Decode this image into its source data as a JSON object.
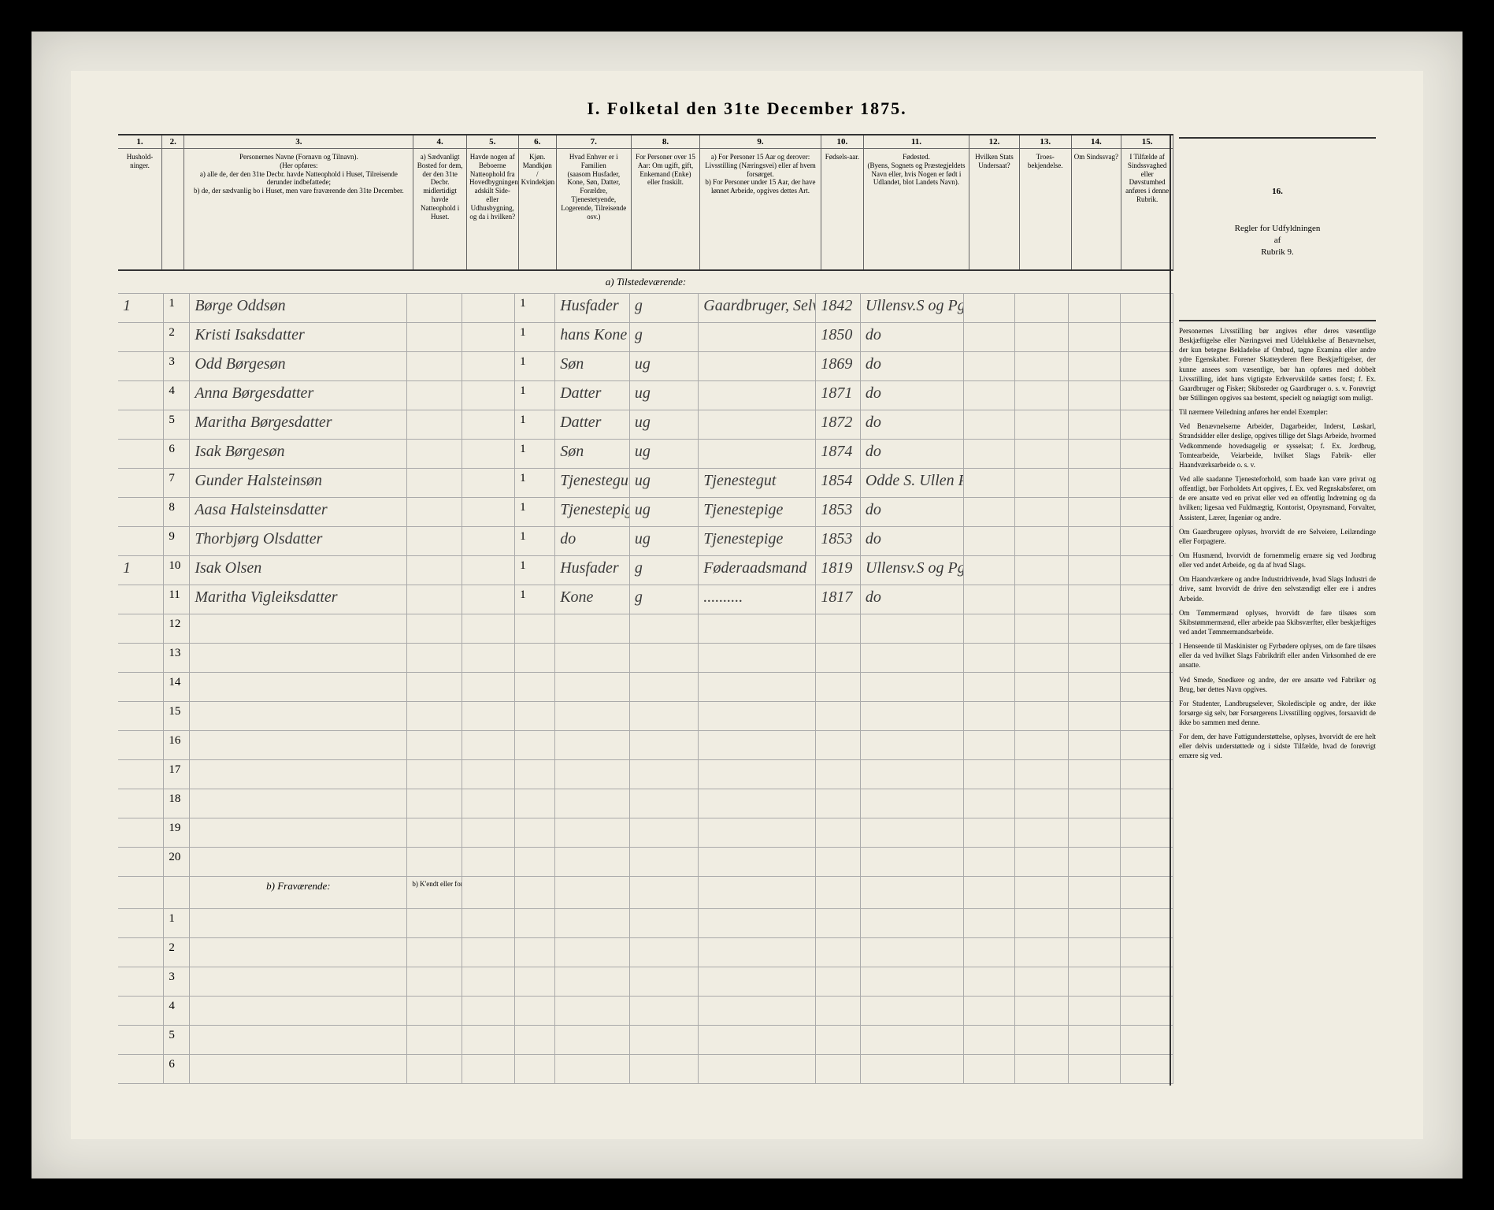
{
  "title": "I.  Folketal   den 31te December 1875.",
  "columns": [
    {
      "num": "1.",
      "label": "Hushold-\nninger.",
      "width": "c1"
    },
    {
      "num": "2.",
      "label": "",
      "width": "c2"
    },
    {
      "num": "3.",
      "label": "Personernes Navne (Fornavn og Tilnavn).\n(Her opføres:\na) alle de, der den 31te Decbr. havde Natteophold i Huset, Tilreisende derunder indbefattede;\nb) de, der sædvanlig bo i Huset, men vare fraværende den 31te December.",
      "width": "c3"
    },
    {
      "num": "4.",
      "label": "a) Sædvanligt Bosted for dem, der den 31te Decbr. midlertidigt havde Natteophold i Huset.",
      "width": "c4"
    },
    {
      "num": "5.",
      "label": "Havde nogen af Beboerne Natteophold fra Hovedbygningen adskilt Side- eller Udhusbygning, og da i hvilken?",
      "width": "c5"
    },
    {
      "num": "6.",
      "label": "Kjøn.\nMandkjøn / Kvindekjøn",
      "width": "c6"
    },
    {
      "num": "7.",
      "label": "Hvad Enhver er i Familien\n(saasom Husfader, Kone, Søn, Datter, Forældre, Tjenestetyende, Logerende, Tilreisende osv.)",
      "width": "c7"
    },
    {
      "num": "8.",
      "label": "For Personer over 15 Aar: Om ugift, gift, Enkemand (Enke) eller fraskilt.",
      "width": "c8"
    },
    {
      "num": "9.",
      "label": "a) For Personer 15 Aar og derover: Livsstilling (Næringsvei) eller af hvem forsørget.\nb) For Personer under 15 Aar, der have lønnet Arbeide, opgives dettes Art.",
      "width": "c9"
    },
    {
      "num": "10.",
      "label": "Fødsels-aar.",
      "width": "c10"
    },
    {
      "num": "11.",
      "label": "Fødested.\n(Byens, Sognets og Præstegjeldets Navn eller, hvis Nogen er født i Udlandet, blot Landets Navn).",
      "width": "c11"
    },
    {
      "num": "12.",
      "label": "Hvilken Stats Undersaat?",
      "width": "c12"
    },
    {
      "num": "13.",
      "label": "Troes-bekjendelse.",
      "width": "c13"
    },
    {
      "num": "14.",
      "label": "Om Sindssvag?",
      "width": "c14"
    },
    {
      "num": "15.",
      "label": "I Tilfælde af Sindssvaghed eller Døvstumhed anføres i denne Rubrik.",
      "width": "c15"
    }
  ],
  "section_a": "a) Tilstedeværende:",
  "section_b": "b) Fraværende:",
  "section_b_note": "b) K'endt eller formodet Opholdssted.",
  "rows_a": [
    {
      "n": "1",
      "hh": "1",
      "name": "Børge Oddsøn",
      "c6": "1",
      "rel": "Husfader",
      "ms": "g",
      "occ": "Gaardbruger, Selveier",
      "yr": "1842",
      "bp": "Ullensv.S og Pgj"
    },
    {
      "n": "2",
      "hh": "",
      "name": "Kristi Isaksdatter",
      "c6": "1",
      "rel": "hans Kone",
      "ms": "g",
      "occ": "",
      "yr": "1850",
      "bp": "do"
    },
    {
      "n": "3",
      "hh": "",
      "name": "Odd Børgesøn",
      "c6": "1",
      "rel": "Søn",
      "ms": "ug",
      "occ": "",
      "yr": "1869",
      "bp": "do"
    },
    {
      "n": "4",
      "hh": "",
      "name": "Anna Børgesdatter",
      "c6": "1",
      "rel": "Datter",
      "ms": "ug",
      "occ": "",
      "yr": "1871",
      "bp": "do"
    },
    {
      "n": "5",
      "hh": "",
      "name": "Maritha Børgesdatter",
      "c6": "1",
      "rel": "Datter",
      "ms": "ug",
      "occ": "",
      "yr": "1872",
      "bp": "do"
    },
    {
      "n": "6",
      "hh": "",
      "name": "Isak Børgesøn",
      "c6": "1",
      "rel": "Søn",
      "ms": "ug",
      "occ": "",
      "yr": "1874",
      "bp": "do"
    },
    {
      "n": "7",
      "hh": "",
      "name": "Gunder Halsteinsøn",
      "c6": "1",
      "rel": "Tjenestegut",
      "ms": "ug",
      "occ": "Tjenestegut",
      "yr": "1854",
      "bp": "Odde S. Ullen Pgj"
    },
    {
      "n": "8",
      "hh": "",
      "name": "Aasa Halsteinsdatter",
      "c6": "1",
      "rel": "Tjenestepige",
      "ms": "ug",
      "occ": "Tjenestepige",
      "yr": "1853",
      "bp": "do"
    },
    {
      "n": "9",
      "hh": "",
      "name": "Thorbjørg Olsdatter",
      "c6": "1",
      "rel": "do",
      "ms": "ug",
      "occ": "Tjenestepige",
      "yr": "1853",
      "bp": "do"
    },
    {
      "n": "10",
      "hh": "1",
      "name": "Isak Olsen",
      "c6": "1",
      "rel": "Husfader",
      "ms": "g",
      "occ": "Føderaadsmand",
      "yr": "1819",
      "bp": "Ullensv.S og Pgj"
    },
    {
      "n": "11",
      "hh": "",
      "name": "Maritha Vigleiksdatter",
      "c6": "1",
      "rel": "Kone",
      "ms": "g",
      "occ": "..........",
      "yr": "1817",
      "bp": "do"
    }
  ],
  "empty_rows_a": [
    12,
    13,
    14,
    15,
    16,
    17,
    18,
    19,
    20
  ],
  "empty_rows_b": [
    1,
    2,
    3,
    4,
    5,
    6
  ],
  "right_header_num": "16.",
  "right_header": "Regler for Udfyldningen\naf\nRubrik 9.",
  "right_body": [
    "Personernes Livsstilling bør angives efter deres væsentlige Beskjæftigelse eller Næringsvei med Udelukkelse af Benævnelser, der kun betegne Bekladelse af Ombud, tagne Examina eller andre ydre Egenskaber. Forener Skatteyderen flere Beskjæftigelser, der kunne ansees som væsentlige, bør han opføres med dobbelt Livsstilling, idet hans vigtigste Erhvervskilde sættes forst; f. Ex. Gaardbruger og Fisker; Skibsreder og Gaardbruger o. s. v. Forøvrigt bør Stillingen opgives saa bestemt, specielt og nøiagtigt som muligt.",
    "Til nærmere Veiledning anføres her endel Exempler:",
    "Ved Benævnelserne Arbeider, Dagarbeider, Inderst, Løskarl, Strandsidder eller deslige, opgives tillige det Slags Arbeide, hvormed Vedkommende hovedsagelig er sysselsat; f. Ex. Jordbrug, Tomtearbeide, Veiarbeide, hvilket Slags Fabrik- eller Haandværksarbeide o. s. v.",
    "Ved alle saadanne Tjenesteforhold, som baade kan være privat og offentligt, bør Forholdets Art opgives, f. Ex. ved Regnskabsfører, om de ere ansatte ved en privat eller ved en offentlig Indretning og da hvilken; ligesaa ved Fuldmægtig, Kontorist, Opsynsmand, Forvalter, Assistent, Lærer, Ingeniør og andre.",
    "Om Gaardbrugere oplyses, hvorvidt de ere Selveiere, Leilændinge eller Forpagtere.",
    "Om Husmænd, hvorvidt de fornemmelig ernære sig ved Jordbrug eller ved andet Arbeide, og da af hvad Slags.",
    "Om Haandværkere og andre Industridrivende, hvad Slags Industri de drive, samt hvorvidt de drive den selvstændigt eller ere i andres Arbeide.",
    "Om Tømmermænd oplyses, hvorvidt de fare tilsøes som Skibstømmermænd, eller arbeide paa Skibsværfter, eller beskjæftiges ved andet Tømmermandsarbeide.",
    "I Henseende til Maskinister og Fyrbødere oplyses, om de fare tilsøes eller da ved hvilket Slags Fabrikdrift eller anden Virksomhed de ere ansatte.",
    "Ved Smede, Snedkere og andre, der ere ansatte ved Fabriker og Brug, bør dettes Navn opgives.",
    "For Studenter, Landbrugselever, Skoledisciple og andre, der ikke forsørge sig selv, bør Forsørgerens Livsstilling opgives, forsaavidt de ikke bo sammen med denne.",
    "For dem, der have Fattigunderstøttelse, oplyses, hvorvidt de ere helt eller delvis understøttede og i sidste Tilfælde, hvad de forøvrigt ernære sig ved."
  ],
  "colors": {
    "paper": "#f0ede2",
    "border_dark": "#333333",
    "border_light": "#aaaaaa",
    "ink": "#3a3a3a",
    "bg": "#000000"
  }
}
